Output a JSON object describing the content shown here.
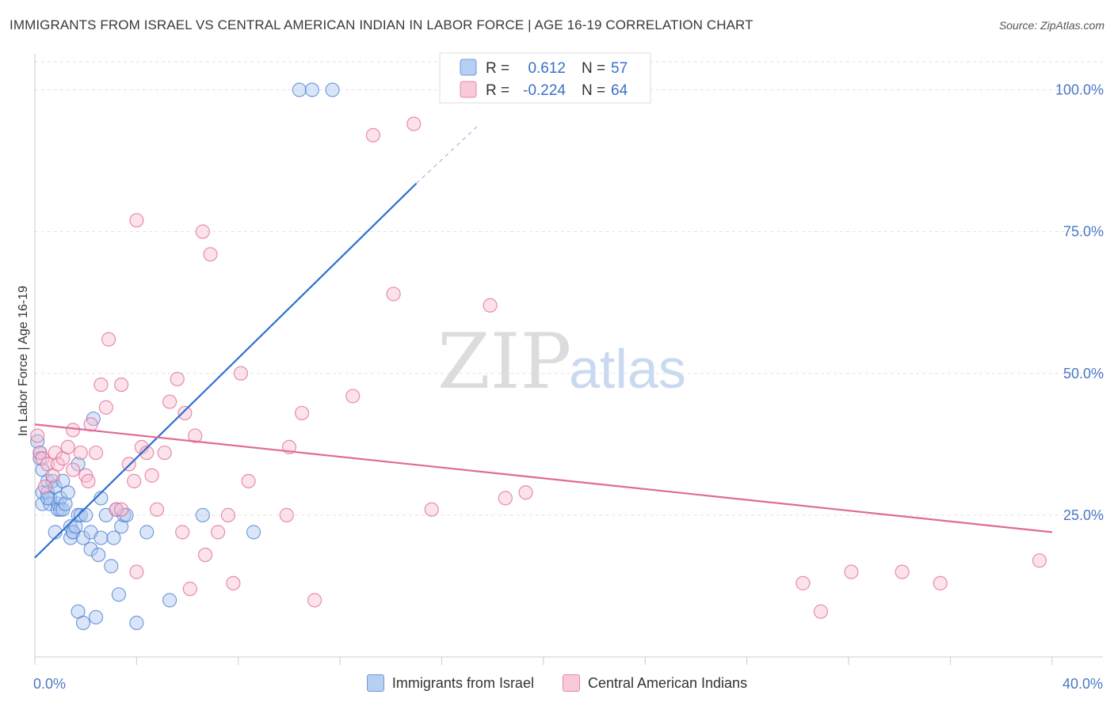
{
  "title": "IMMIGRANTS FROM ISRAEL VS CENTRAL AMERICAN INDIAN IN LABOR FORCE | AGE 16-19 CORRELATION CHART",
  "source": "Source: ZipAtlas.com",
  "watermark": {
    "zip": "ZIP",
    "atlas": "atlas"
  },
  "colors": {
    "blue": "#4a7fd4",
    "blue_fill": "#aec8ee",
    "pink": "#e06a96",
    "pink_fill": "#f6bfd2",
    "axis_text": "#4a78c4",
    "grid": "#dddddd"
  },
  "legend": {
    "r_label": "R =",
    "n_label": "N =",
    "blue": {
      "r": "0.612",
      "n": "57"
    },
    "pink": {
      "r": "-0.224",
      "n": "64"
    }
  },
  "bottom_legend": [
    {
      "label": "Immigrants from Israel",
      "color": "blue"
    },
    {
      "label": "Central American Indians",
      "color": "pink"
    }
  ],
  "chart_data": {
    "type": "scatter",
    "title": "IMMIGRANTS FROM ISRAEL VS CENTRAL AMERICAN INDIAN IN LABOR FORCE | AGE 16-19 CORRELATION CHART",
    "xlabel": "",
    "ylabel": "In Labor Force | Age 16-19",
    "xlim": [
      0,
      40
    ],
    "ylim": [
      0,
      102
    ],
    "x_tick_labels": [
      "0.0%",
      "40.0%"
    ],
    "y_ticks": [
      25,
      50,
      75,
      100
    ],
    "y_tick_labels": [
      "25.0%",
      "50.0%",
      "75.0%",
      "100.0%"
    ],
    "series": [
      {
        "name": "Immigrants from Israel",
        "color": "blue",
        "r": 0.612,
        "n": 57,
        "trend": {
          "x0": 0,
          "y0": 17.5,
          "x1": 15,
          "y1": 83.5,
          "dash_x1": 17.5,
          "dash_y1": 94
        },
        "points": [
          [
            0.1,
            38
          ],
          [
            0.2,
            36
          ],
          [
            0.2,
            35
          ],
          [
            0.3,
            33
          ],
          [
            0.3,
            29
          ],
          [
            0.3,
            27
          ],
          [
            0.5,
            31
          ],
          [
            0.5,
            29
          ],
          [
            0.6,
            28
          ],
          [
            0.6,
            27
          ],
          [
            0.7,
            31
          ],
          [
            0.8,
            30
          ],
          [
            0.8,
            22
          ],
          [
            0.9,
            27
          ],
          [
            0.9,
            26
          ],
          [
            1.0,
            26
          ],
          [
            1.0,
            28
          ],
          [
            1.1,
            31
          ],
          [
            1.1,
            26
          ],
          [
            1.2,
            27
          ],
          [
            1.3,
            29
          ],
          [
            1.4,
            21
          ],
          [
            1.4,
            23
          ],
          [
            1.5,
            22
          ],
          [
            1.5,
            22
          ],
          [
            1.6,
            23
          ],
          [
            1.7,
            25
          ],
          [
            1.7,
            34
          ],
          [
            1.8,
            25
          ],
          [
            1.9,
            21
          ],
          [
            2.0,
            25
          ],
          [
            2.2,
            22
          ],
          [
            2.2,
            19
          ],
          [
            2.3,
            42
          ],
          [
            2.5,
            18
          ],
          [
            2.6,
            28
          ],
          [
            2.6,
            21
          ],
          [
            2.8,
            25
          ],
          [
            3.0,
            16
          ],
          [
            3.1,
            21
          ],
          [
            3.2,
            26
          ],
          [
            3.3,
            11
          ],
          [
            3.4,
            23
          ],
          [
            3.5,
            25
          ],
          [
            3.6,
            25
          ],
          [
            4.0,
            6
          ],
          [
            4.4,
            22
          ],
          [
            5.3,
            10
          ],
          [
            6.6,
            25
          ],
          [
            8.6,
            22
          ],
          [
            1.7,
            8
          ],
          [
            1.9,
            6
          ],
          [
            2.4,
            7
          ],
          [
            10.4,
            100
          ],
          [
            10.9,
            100
          ],
          [
            11.7,
            100
          ],
          [
            0.5,
            28
          ]
        ]
      },
      {
        "name": "Central American Indians",
        "color": "pink",
        "r": -0.224,
        "n": 64,
        "trend": {
          "x0": 0,
          "y0": 41,
          "x1": 40,
          "y1": 22
        },
        "points": [
          [
            0.1,
            39
          ],
          [
            0.2,
            36
          ],
          [
            0.3,
            35
          ],
          [
            0.4,
            30
          ],
          [
            0.5,
            34
          ],
          [
            0.7,
            32
          ],
          [
            0.8,
            36
          ],
          [
            0.9,
            34
          ],
          [
            1.1,
            35
          ],
          [
            1.3,
            37
          ],
          [
            1.5,
            33
          ],
          [
            1.5,
            40
          ],
          [
            1.8,
            36
          ],
          [
            2.0,
            32
          ],
          [
            2.1,
            31
          ],
          [
            2.2,
            41
          ],
          [
            2.4,
            36
          ],
          [
            2.6,
            48
          ],
          [
            2.8,
            44
          ],
          [
            2.9,
            56
          ],
          [
            3.2,
            26
          ],
          [
            3.4,
            26
          ],
          [
            3.4,
            48
          ],
          [
            3.7,
            34
          ],
          [
            3.9,
            31
          ],
          [
            4.0,
            15
          ],
          [
            4.2,
            37
          ],
          [
            4.4,
            36
          ],
          [
            4.6,
            32
          ],
          [
            4.8,
            26
          ],
          [
            5.1,
            36
          ],
          [
            5.3,
            45
          ],
          [
            5.6,
            49
          ],
          [
            5.8,
            22
          ],
          [
            5.9,
            43
          ],
          [
            6.1,
            12
          ],
          [
            6.3,
            39
          ],
          [
            6.6,
            75
          ],
          [
            6.7,
            18
          ],
          [
            6.9,
            71
          ],
          [
            7.2,
            22
          ],
          [
            7.6,
            25
          ],
          [
            7.8,
            13
          ],
          [
            8.1,
            50
          ],
          [
            8.4,
            31
          ],
          [
            9.9,
            25
          ],
          [
            10.0,
            37
          ],
          [
            10.5,
            43
          ],
          [
            11.0,
            10
          ],
          [
            12.5,
            46
          ],
          [
            13.3,
            92
          ],
          [
            14.1,
            64
          ],
          [
            14.9,
            94
          ],
          [
            15.6,
            26
          ],
          [
            17.9,
            62
          ],
          [
            18.5,
            28
          ],
          [
            19.3,
            29
          ],
          [
            30.2,
            13
          ],
          [
            30.9,
            8
          ],
          [
            32.1,
            15
          ],
          [
            34.1,
            15
          ],
          [
            35.6,
            13
          ],
          [
            39.5,
            17
          ],
          [
            4.0,
            77
          ]
        ]
      }
    ]
  }
}
